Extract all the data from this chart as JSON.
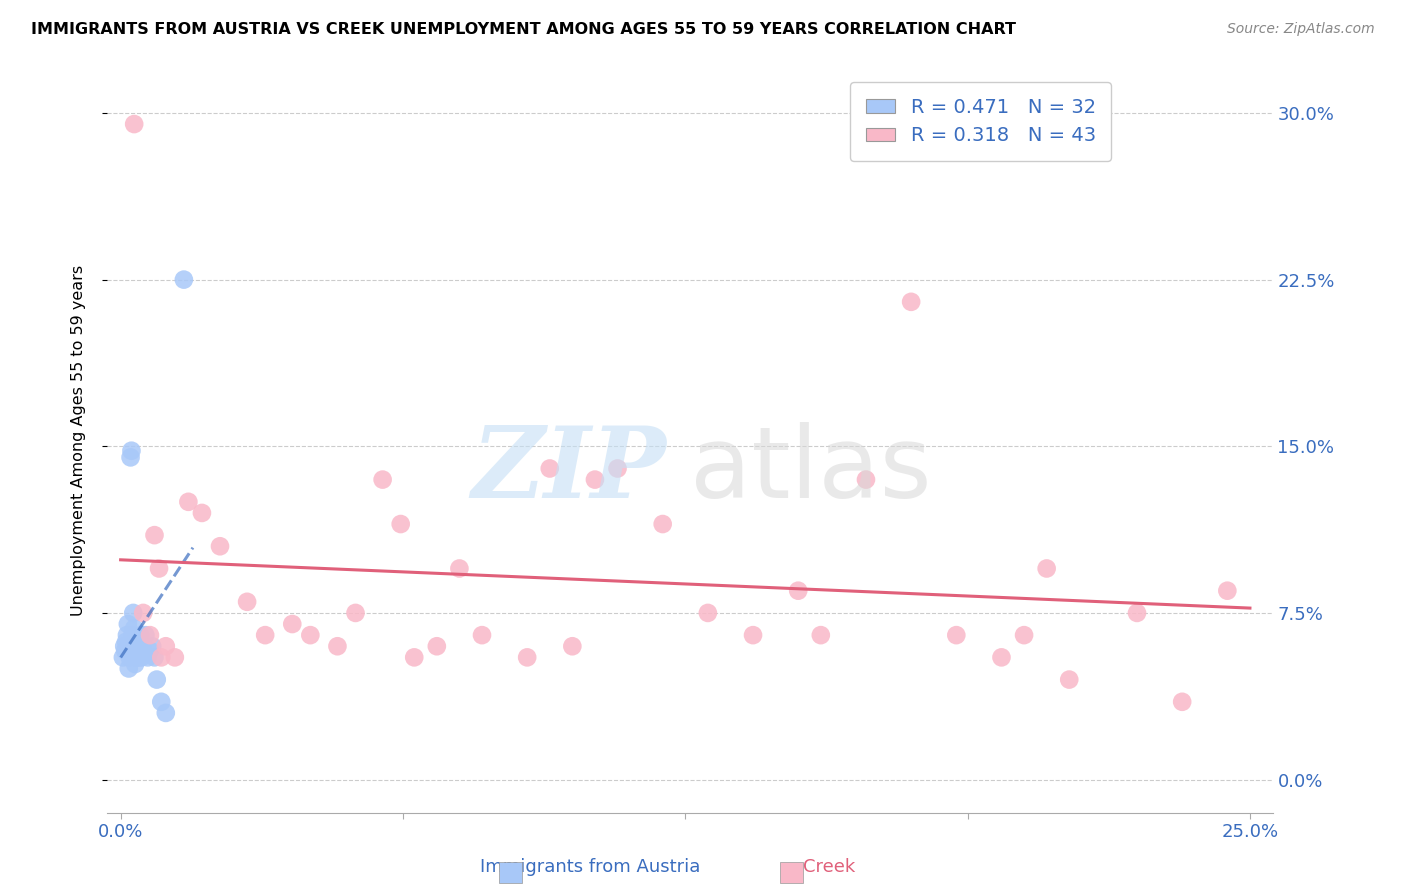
{
  "title": "IMMIGRANTS FROM AUSTRIA VS CREEK UNEMPLOYMENT AMONG AGES 55 TO 59 YEARS CORRELATION CHART",
  "source": "Source: ZipAtlas.com",
  "ylabel": "Unemployment Among Ages 55 to 59 years",
  "ytick_values": [
    0.0,
    7.5,
    15.0,
    22.5,
    30.0
  ],
  "ytick_labels": [
    "0.0%",
    "7.5%",
    "15.0%",
    "22.5%",
    "30.0%"
  ],
  "xlim": [
    0.0,
    25.0
  ],
  "ylim": [
    -1.5,
    32.0
  ],
  "austria_color": "#a8c8f8",
  "austria_line_color": "#3a6dbf",
  "creek_color": "#f9b8c8",
  "creek_line_color": "#e0607a",
  "austria_R": "0.471",
  "austria_N": "32",
  "creek_R": "0.318",
  "creek_N": "43",
  "austria_scatter_x": [
    0.05,
    0.08,
    0.1,
    0.12,
    0.14,
    0.16,
    0.18,
    0.2,
    0.22,
    0.24,
    0.26,
    0.28,
    0.3,
    0.32,
    0.34,
    0.36,
    0.38,
    0.4,
    0.42,
    0.44,
    0.46,
    0.48,
    0.5,
    0.55,
    0.6,
    0.65,
    0.7,
    0.75,
    0.8,
    0.9,
    1.0,
    1.4
  ],
  "austria_scatter_y": [
    5.5,
    6.0,
    5.8,
    6.2,
    6.5,
    7.0,
    5.0,
    5.5,
    14.5,
    14.8,
    6.5,
    7.5,
    6.8,
    5.2,
    6.0,
    5.5,
    5.8,
    5.5,
    6.2,
    6.5,
    5.5,
    6.0,
    5.8,
    6.5,
    5.5,
    5.8,
    6.0,
    5.5,
    4.5,
    3.5,
    3.0,
    22.5
  ],
  "creek_scatter_x": [
    0.3,
    0.5,
    0.65,
    0.75,
    0.85,
    0.9,
    1.0,
    1.2,
    1.5,
    1.8,
    2.2,
    2.8,
    3.2,
    3.8,
    4.2,
    4.8,
    5.2,
    5.8,
    6.2,
    7.0,
    8.0,
    9.0,
    9.5,
    10.5,
    11.0,
    12.0,
    13.0,
    14.0,
    15.0,
    16.5,
    17.5,
    18.5,
    19.5,
    20.0,
    21.0,
    22.5,
    23.5,
    24.5,
    6.5,
    7.5,
    10.0,
    15.5,
    20.5
  ],
  "creek_scatter_y": [
    29.5,
    7.5,
    6.5,
    11.0,
    9.5,
    5.5,
    6.0,
    5.5,
    12.5,
    12.0,
    10.5,
    8.0,
    6.5,
    7.0,
    6.5,
    6.0,
    7.5,
    13.5,
    11.5,
    6.0,
    6.5,
    5.5,
    14.0,
    13.5,
    14.0,
    11.5,
    7.5,
    6.5,
    8.5,
    13.5,
    21.5,
    6.5,
    5.5,
    6.5,
    4.5,
    7.5,
    3.5,
    8.5,
    5.5,
    9.5,
    6.0,
    6.5,
    9.5
  ]
}
